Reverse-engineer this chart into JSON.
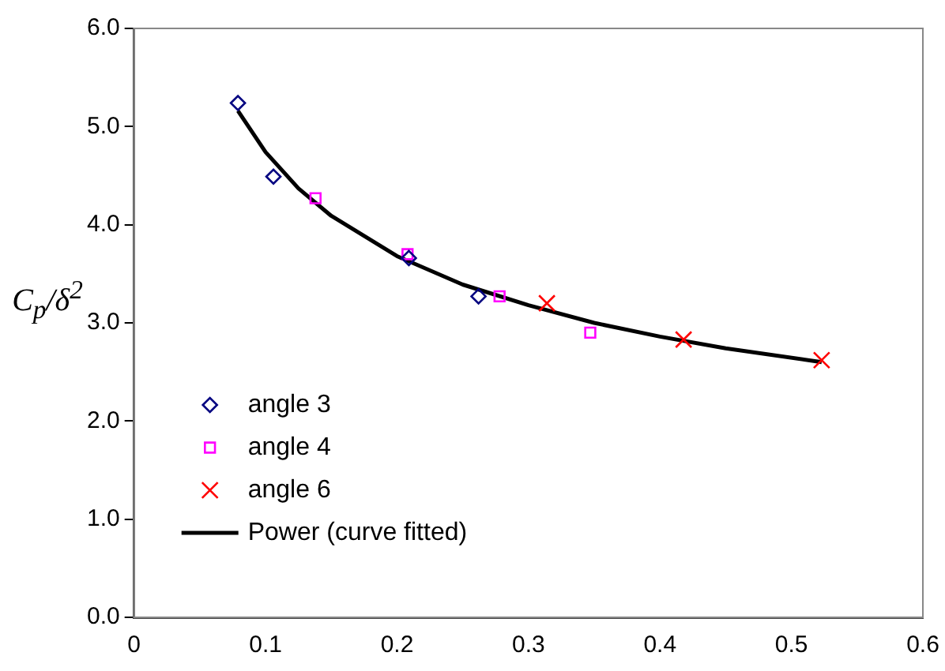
{
  "chart_data": {
    "type": "scatter",
    "ylabel": "C$_{p}$/δ$^{2}$",
    "xlim": [
      0,
      0.6
    ],
    "xticks": [
      0,
      0.1,
      0.2,
      0.3,
      0.4,
      0.5,
      0.6
    ],
    "ylim": [
      0,
      6
    ],
    "yticks": [
      {
        "value": 0,
        "label": "0.0"
      },
      {
        "value": 1,
        "label": "1.0"
      },
      {
        "value": 2,
        "label": "2.0"
      },
      {
        "value": 3,
        "label": "3.0"
      },
      {
        "value": 4,
        "label": "4.0"
      },
      {
        "value": 5,
        "label": "5.0"
      },
      {
        "value": 6,
        "label": "6.0"
      }
    ],
    "grid": false,
    "legend": "bottom left",
    "series": [
      {
        "name": "angle 3",
        "color": "#000080",
        "marker": "diamond",
        "x": [
          0.079,
          0.106,
          0.209,
          0.262
        ],
        "values": [
          5.24,
          4.49,
          3.66,
          3.27
        ]
      },
      {
        "name": "angle 4",
        "color": "#ff00ff",
        "marker": "square",
        "x": [
          0.138,
          0.208,
          0.278,
          0.347
        ],
        "values": [
          4.27,
          3.7,
          3.27,
          2.9
        ]
      },
      {
        "name": "angle 6",
        "color": "#ff0000",
        "marker": "cross",
        "x": [
          0.314,
          0.418,
          0.523
        ],
        "values": [
          3.2,
          2.83,
          2.62
        ]
      },
      {
        "name": "Power (curve fitted)",
        "type": "line",
        "color": "#000000",
        "marker": "none",
        "x": [
          0.079,
          0.1,
          0.125,
          0.15,
          0.2,
          0.25,
          0.3,
          0.35,
          0.4,
          0.45,
          0.523
        ],
        "values": [
          5.16,
          4.74,
          4.37,
          4.09,
          3.68,
          3.39,
          3.18,
          3.0,
          2.86,
          2.74,
          2.6
        ]
      }
    ]
  }
}
